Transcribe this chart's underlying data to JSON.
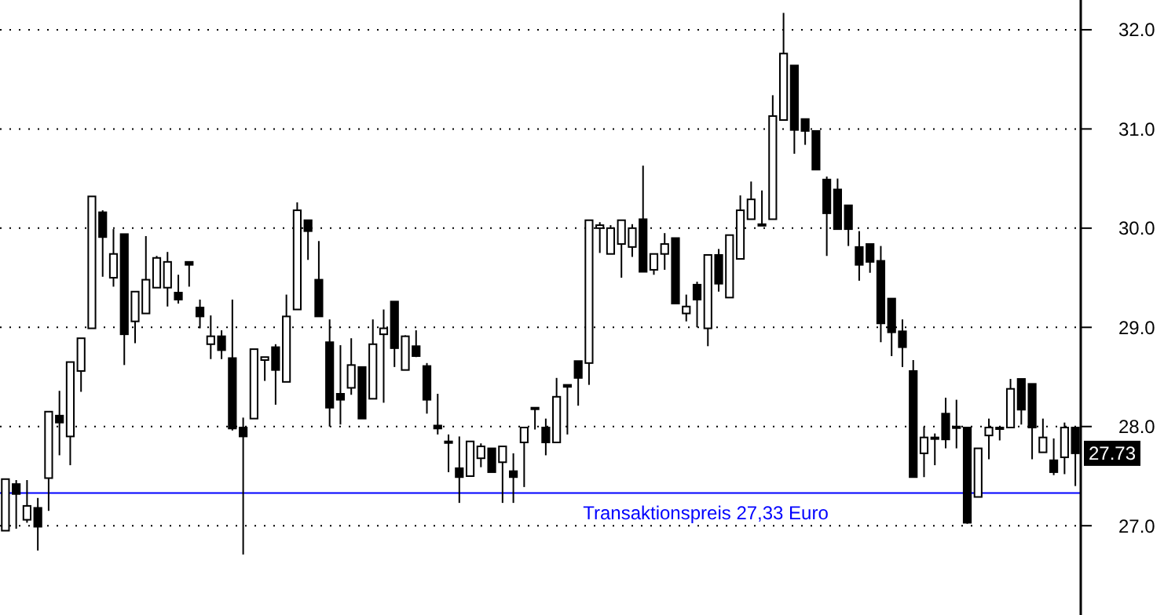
{
  "chart_data": {
    "type": "candlestick",
    "categories": [
      null,
      null,
      null,
      null,
      null,
      null,
      null,
      null,
      null,
      null,
      null,
      null,
      null,
      null,
      null,
      null,
      null,
      null,
      null,
      null,
      null,
      null,
      null,
      null,
      null,
      null,
      null,
      null,
      null,
      null,
      null,
      null,
      null,
      null,
      null,
      null,
      null,
      null,
      null,
      null,
      null,
      null,
      null,
      null,
      null,
      null,
      null,
      null,
      null,
      null,
      null,
      null,
      null,
      null,
      null,
      null,
      null,
      null,
      null,
      null,
      null,
      null,
      null,
      null,
      null,
      null,
      null,
      null,
      null,
      null,
      null,
      null,
      null,
      null,
      null,
      null,
      null,
      null,
      null,
      null,
      null,
      null,
      null,
      null,
      null,
      null,
      null,
      null,
      null,
      null,
      null,
      null,
      null,
      null,
      null,
      null,
      null,
      null,
      null,
      null
    ],
    "ohlc": [
      [
        26.95,
        27.47,
        26.95,
        27.47
      ],
      [
        27.42,
        27.46,
        26.97,
        27.32
      ],
      [
        27.06,
        27.46,
        27.03,
        27.2
      ],
      [
        27.18,
        27.28,
        26.75,
        26.99
      ],
      [
        27.48,
        28.15,
        27.15,
        28.15
      ],
      [
        28.11,
        28.36,
        27.71,
        28.04
      ],
      [
        27.9,
        28.65,
        27.61,
        28.65
      ],
      [
        28.56,
        28.89,
        28.35,
        28.89
      ],
      [
        28.99,
        30.32,
        28.99,
        30.32
      ],
      [
        30.16,
        30.18,
        29.51,
        29.91
      ],
      [
        29.5,
        29.99,
        29.41,
        29.74
      ],
      [
        29.94,
        29.94,
        28.62,
        28.93
      ],
      [
        29.06,
        29.36,
        28.84,
        29.36
      ],
      [
        29.14,
        29.92,
        29.14,
        29.48
      ],
      [
        29.4,
        29.72,
        29.4,
        29.7
      ],
      [
        29.4,
        29.76,
        29.21,
        29.66
      ],
      [
        29.35,
        29.53,
        29.24,
        29.28
      ],
      [
        29.66,
        29.66,
        29.41,
        29.63
      ],
      [
        29.2,
        29.28,
        28.99,
        29.11
      ],
      [
        28.83,
        29.12,
        28.68,
        28.91
      ],
      [
        28.91,
        28.97,
        28.68,
        28.77
      ],
      [
        28.69,
        29.28,
        27.96,
        27.98
      ],
      [
        27.99,
        28.09,
        26.71,
        27.9
      ],
      [
        28.08,
        28.78,
        28.08,
        28.78
      ],
      [
        28.67,
        28.7,
        28.46,
        28.7
      ],
      [
        28.8,
        28.83,
        28.22,
        28.57
      ],
      [
        28.45,
        29.33,
        28.45,
        29.11
      ],
      [
        29.18,
        30.26,
        29.18,
        30.18
      ],
      [
        30.08,
        30.08,
        29.68,
        29.97
      ],
      [
        29.48,
        29.87,
        29.11,
        29.11
      ],
      [
        28.85,
        29.08,
        28.0,
        28.19
      ],
      [
        28.33,
        28.82,
        28.02,
        28.27
      ],
      [
        28.39,
        28.89,
        28.32,
        28.62
      ],
      [
        28.6,
        28.6,
        28.08,
        28.08
      ],
      [
        28.28,
        29.08,
        28.28,
        28.83
      ],
      [
        28.93,
        29.18,
        28.24,
        28.99
      ],
      [
        29.26,
        29.26,
        28.6,
        28.79
      ],
      [
        28.57,
        28.92,
        28.57,
        28.91
      ],
      [
        28.81,
        28.97,
        28.7,
        28.71
      ],
      [
        28.61,
        28.64,
        28.13,
        28.27
      ],
      [
        28.01,
        28.33,
        27.92,
        27.98
      ],
      [
        27.84,
        27.92,
        27.54,
        27.85
      ],
      [
        27.58,
        27.9,
        27.23,
        27.49
      ],
      [
        27.5,
        27.85,
        27.5,
        27.85
      ],
      [
        27.68,
        27.83,
        27.59,
        27.8
      ],
      [
        27.78,
        27.78,
        27.54,
        27.54
      ],
      [
        27.64,
        27.8,
        27.23,
        27.8
      ],
      [
        27.55,
        27.73,
        27.23,
        27.49
      ],
      [
        27.84,
        27.99,
        27.39,
        27.99
      ],
      [
        28.18,
        28.19,
        27.97,
        28.19
      ],
      [
        27.99,
        28.08,
        27.71,
        27.84
      ],
      [
        27.84,
        28.49,
        27.84,
        28.3
      ],
      [
        28.42,
        28.42,
        27.92,
        28.4
      ],
      [
        28.66,
        28.66,
        28.21,
        28.49
      ],
      [
        28.64,
        30.08,
        28.42,
        30.08
      ],
      [
        30.0,
        30.06,
        29.75,
        30.03
      ],
      [
        29.74,
        30.03,
        29.74,
        30.0
      ],
      [
        29.84,
        30.08,
        29.5,
        30.08
      ],
      [
        29.81,
        30.04,
        29.71,
        30.0
      ],
      [
        30.09,
        30.63,
        29.56,
        29.56
      ],
      [
        29.58,
        29.74,
        29.53,
        29.74
      ],
      [
        29.74,
        29.95,
        29.58,
        29.84
      ],
      [
        29.9,
        29.9,
        29.24,
        29.24
      ],
      [
        29.14,
        29.33,
        29.06,
        29.21
      ],
      [
        29.43,
        29.46,
        29.0,
        29.28
      ],
      [
        28.99,
        29.73,
        28.81,
        29.73
      ],
      [
        29.73,
        29.79,
        29.36,
        29.44
      ],
      [
        29.3,
        29.93,
        29.3,
        29.93
      ],
      [
        29.69,
        30.33,
        29.69,
        30.18
      ],
      [
        30.09,
        30.47,
        30.09,
        30.29
      ],
      [
        30.04,
        30.38,
        30.03,
        30.03
      ],
      [
        30.09,
        31.34,
        30.09,
        31.13
      ],
      [
        31.09,
        32.17,
        31.09,
        31.76
      ],
      [
        31.64,
        31.64,
        30.75,
        30.99
      ],
      [
        31.1,
        31.1,
        30.84,
        30.98
      ],
      [
        30.98,
        30.98,
        30.59,
        30.59
      ],
      [
        30.49,
        30.52,
        29.72,
        30.15
      ],
      [
        30.39,
        30.5,
        29.99,
        29.99
      ],
      [
        30.23,
        30.23,
        29.82,
        29.99
      ],
      [
        29.81,
        29.97,
        29.47,
        29.63
      ],
      [
        29.84,
        29.84,
        29.55,
        29.66
      ],
      [
        29.67,
        29.82,
        28.85,
        29.04
      ],
      [
        29.29,
        29.29,
        28.71,
        28.95
      ],
      [
        28.96,
        29.08,
        28.6,
        28.8
      ],
      [
        28.56,
        28.67,
        27.49,
        27.49
      ],
      [
        27.73,
        28.0,
        27.49,
        27.89
      ],
      [
        27.88,
        27.93,
        27.61,
        27.89
      ],
      [
        28.13,
        28.29,
        27.78,
        27.87
      ],
      [
        28.0,
        28.27,
        27.78,
        27.99
      ],
      [
        27.99,
        27.99,
        27.02,
        27.03
      ],
      [
        27.29,
        27.78,
        27.29,
        27.78
      ],
      [
        27.91,
        28.08,
        27.67,
        27.99
      ],
      [
        27.99,
        27.99,
        27.86,
        27.98
      ],
      [
        27.99,
        28.48,
        27.99,
        28.38
      ],
      [
        28.48,
        28.48,
        28.02,
        28.17
      ],
      [
        28.43,
        28.43,
        27.67,
        27.99
      ],
      [
        27.74,
        28.08,
        27.74,
        27.89
      ],
      [
        27.66,
        27.88,
        27.51,
        27.54
      ],
      [
        27.69,
        28.04,
        27.52,
        27.99
      ],
      [
        27.99,
        27.99,
        27.4,
        27.73
      ]
    ],
    "ylim": [
      26.1,
      32.3
    ],
    "yticks": [
      {
        "value": 27,
        "label": "27.0"
      },
      {
        "value": 28,
        "label": "28.0"
      },
      {
        "value": 29,
        "label": "29.0"
      },
      {
        "value": 30,
        "label": "30.0"
      },
      {
        "value": 31,
        "label": "31.0"
      },
      {
        "value": 32,
        "label": "32.0"
      }
    ],
    "grid": "y",
    "tick_labels": "y",
    "ref_lines": [
      {
        "axis": "y",
        "value": 27.33,
        "label": "Transaktionspreis 27,33 Euro",
        "color": "#0000ff"
      }
    ],
    "annotations": [
      {
        "text": "27.73",
        "y": 27.73
      }
    ]
  }
}
